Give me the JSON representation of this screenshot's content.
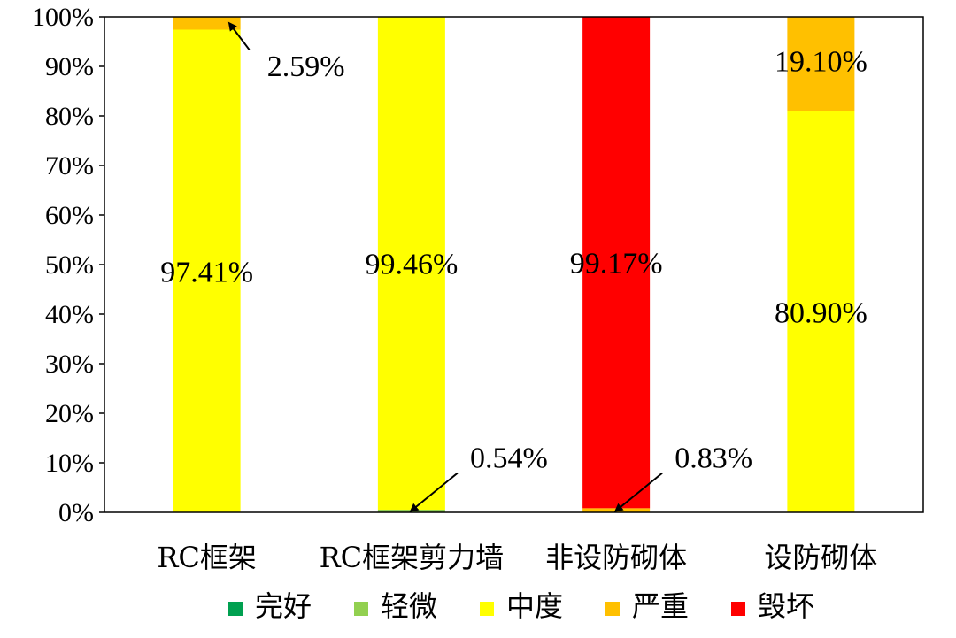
{
  "chart_data": {
    "type": "bar",
    "stacked": true,
    "categories": [
      "RC框架",
      "RC框架剪力墙",
      "非设防砌体",
      "设防砌体"
    ],
    "series": [
      {
        "name": "完好",
        "color": "#00a050",
        "values": [
          0,
          0,
          0,
          0
        ]
      },
      {
        "name": "轻微",
        "color": "#92d050",
        "values": [
          0,
          0.54,
          0,
          0
        ]
      },
      {
        "name": "中度",
        "color": "#ffff00",
        "values": [
          97.41,
          99.46,
          0,
          80.9
        ]
      },
      {
        "name": "严重",
        "color": "#ffc000",
        "values": [
          2.59,
          0,
          0.83,
          19.1
        ]
      },
      {
        "name": "毁坏",
        "color": "#ff0000",
        "values": [
          0,
          0,
          99.17,
          0
        ]
      }
    ],
    "ylim": [
      0,
      100
    ],
    "yticks": [
      "0%",
      "10%",
      "20%",
      "30%",
      "40%",
      "50%",
      "60%",
      "70%",
      "80%",
      "90%",
      "100%"
    ],
    "legend_position": "bottom",
    "data_labels": [
      {
        "category": 0,
        "series": 2,
        "text": "97.41%",
        "arrow": false
      },
      {
        "category": 0,
        "series": 3,
        "text": "2.59%",
        "arrow": true
      },
      {
        "category": 1,
        "series": 2,
        "text": "99.46%",
        "arrow": false
      },
      {
        "category": 1,
        "series": 1,
        "text": "0.54%",
        "arrow": true
      },
      {
        "category": 2,
        "series": 4,
        "text": "99.17%",
        "arrow": false
      },
      {
        "category": 2,
        "series": 3,
        "text": "0.83%",
        "arrow": true
      },
      {
        "category": 3,
        "series": 2,
        "text": "80.90%",
        "arrow": false
      },
      {
        "category": 3,
        "series": 3,
        "text": "19.10%",
        "arrow": false
      }
    ]
  }
}
